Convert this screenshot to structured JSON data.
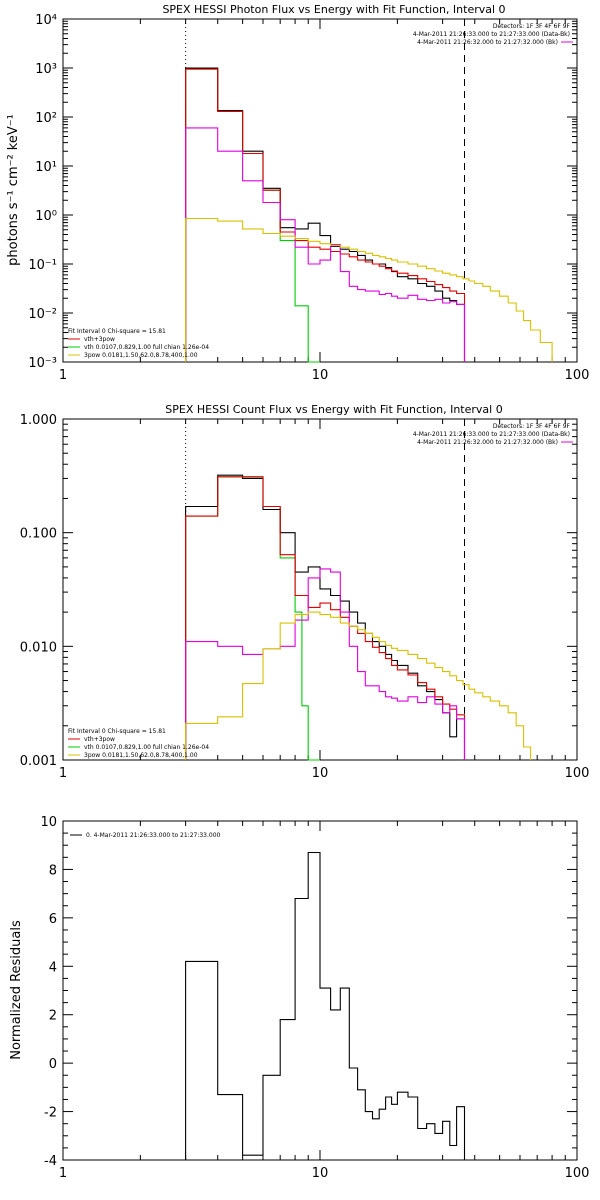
{
  "chart_data": [
    {
      "type": "line",
      "title": "SPEX HESSI Photon Flux vs Energy with Fit Function, Interval 0",
      "ylabel": "photons s⁻¹ cm⁻² keV⁻¹",
      "xlabel": "",
      "xscale": "log",
      "yscale": "log",
      "xlim": [
        1,
        100
      ],
      "ylim": [
        0.001,
        10000
      ],
      "xticks": [
        {
          "v": 1,
          "label": "1"
        },
        {
          "v": 10,
          "label": "10"
        },
        {
          "v": 100,
          "label": "100"
        }
      ],
      "yticks": [
        {
          "v": 0.001,
          "label": "10⁻³"
        },
        {
          "v": 0.01,
          "label": "10⁻²"
        },
        {
          "v": 0.1,
          "label": "10⁻¹"
        },
        {
          "v": 1,
          "label": "10⁰"
        },
        {
          "v": 10,
          "label": "10¹"
        },
        {
          "v": 100,
          "label": "10²"
        },
        {
          "v": 1000,
          "label": "10³"
        },
        {
          "v": 10000,
          "label": "10⁴"
        }
      ],
      "vlines": [
        {
          "x": 3,
          "style": "dotted"
        },
        {
          "x": 36.5,
          "style": "dashed"
        }
      ],
      "detectors": "Detectors: 1F 3F 4F 6F 9F",
      "times": [
        {
          "text": "4-Mar-2011 21:26:33.000 to 21:27:33.000 (Data-Bk)",
          "color": "#000000"
        },
        {
          "text": "4-Mar-2011 21:26:32.000 to 21:27:32.000 (Bk)",
          "color": "#e000e0"
        }
      ],
      "fit_header": "Fit Interval 0   Chi-square = 15.81",
      "legend": [
        {
          "text": "vth+3pow",
          "color": "#e00000"
        },
        {
          "text": "vth 0.0107,0.829,1.00  full chian 1.26e-04",
          "color": "#00cc00"
        },
        {
          "text": "3pow 0.0181,1.50,62.0,8.78,400,1.00",
          "color": "#d8c000"
        }
      ],
      "series": [
        {
          "color": "#00cc00",
          "edges": [
            3,
            4,
            5,
            6,
            7,
            8,
            9,
            10
          ],
          "values": [
            950,
            130,
            18,
            3.2,
            0.3,
            0.014,
            0.001
          ]
        },
        {
          "color": "#000000",
          "edges": [
            3,
            4,
            5,
            6,
            7,
            8,
            9,
            10,
            11,
            12,
            13,
            14,
            15,
            16,
            17,
            18,
            19,
            20,
            22,
            24,
            26,
            28,
            30,
            32,
            34,
            36.5
          ],
          "values": [
            1000,
            135,
            20,
            3.5,
            0.55,
            0.52,
            0.68,
            0.38,
            0.23,
            0.2,
            0.18,
            0.15,
            0.12,
            0.1,
            0.1,
            0.085,
            0.07,
            0.055,
            0.05,
            0.04,
            0.035,
            0.028,
            0.02,
            0.018,
            0.015
          ]
        },
        {
          "color": "#e00000",
          "edges": [
            3,
            4,
            5,
            6,
            7,
            8,
            9,
            10,
            11,
            12,
            13,
            14,
            15,
            16,
            17,
            18,
            19,
            20,
            22,
            24,
            26,
            28,
            30,
            32,
            34,
            36.5
          ],
          "values": [
            950,
            130,
            18,
            3.2,
            0.45,
            0.3,
            0.22,
            0.2,
            0.18,
            0.16,
            0.14,
            0.12,
            0.11,
            0.1,
            0.09,
            0.08,
            0.072,
            0.065,
            0.058,
            0.05,
            0.044,
            0.038,
            0.033,
            0.028,
            0.025
          ]
        },
        {
          "color": "#e000e0",
          "edges": [
            3,
            4,
            5,
            6,
            7,
            8,
            9,
            10,
            11,
            12,
            13,
            14,
            15,
            16,
            17,
            18,
            19,
            20,
            22,
            24,
            26,
            28,
            30,
            32,
            34,
            36.5
          ],
          "values": [
            60,
            20,
            5,
            1.8,
            0.8,
            0.22,
            0.1,
            0.12,
            0.25,
            0.07,
            0.035,
            0.03,
            0.028,
            0.028,
            0.024,
            0.025,
            0.022,
            0.02,
            0.023,
            0.019,
            0.018,
            0.019,
            0.016,
            0.017,
            0.015
          ]
        },
        {
          "color": "#d8c000",
          "edges": [
            3,
            4,
            5,
            6,
            7,
            8,
            9,
            10,
            11,
            12,
            13,
            14,
            15,
            16,
            17,
            18,
            19,
            20,
            22,
            24,
            26,
            28,
            30,
            32,
            34,
            36,
            38,
            40,
            43,
            46,
            50,
            54,
            58,
            62,
            66,
            72,
            80
          ],
          "values": [
            0.85,
            0.75,
            0.52,
            0.42,
            0.37,
            0.33,
            0.29,
            0.26,
            0.24,
            0.22,
            0.2,
            0.18,
            0.165,
            0.15,
            0.14,
            0.13,
            0.12,
            0.11,
            0.1,
            0.09,
            0.08,
            0.072,
            0.065,
            0.06,
            0.055,
            0.05,
            0.045,
            0.04,
            0.035,
            0.028,
            0.022,
            0.016,
            0.011,
            0.007,
            0.0045,
            0.0025
          ]
        }
      ]
    },
    {
      "type": "line",
      "title": "SPEX HESSI Count Flux vs Energy with Fit Function, Interval 0",
      "ylabel": "",
      "xlabel": "",
      "xscale": "log",
      "yscale": "log",
      "xlim": [
        1,
        100
      ],
      "ylim": [
        0.001,
        1
      ],
      "xticks": [
        {
          "v": 1,
          "label": "1"
        },
        {
          "v": 10,
          "label": "10"
        },
        {
          "v": 100,
          "label": "100"
        }
      ],
      "yticks": [
        {
          "v": 0.001,
          "label": "0.001"
        },
        {
          "v": 0.01,
          "label": "0.010"
        },
        {
          "v": 0.1,
          "label": "0.100"
        },
        {
          "v": 1,
          "label": "1.000"
        }
      ],
      "vlines": [
        {
          "x": 3,
          "style": "dotted"
        },
        {
          "x": 36.5,
          "style": "dashed"
        }
      ],
      "detectors": "Detectors: 1F 3F 4F 6F 9F",
      "times": [
        {
          "text": "4-Mar-2011 21:26:33.000 to 21:27:33.000 (Data-Bk)",
          "color": "#000000"
        },
        {
          "text": "4-Mar-2011 21:26:32.000 to 21:27:32.000 (Bk)",
          "color": "#e000e0"
        }
      ],
      "fit_header": "Fit Interval 0   Chi-square = 15.81",
      "legend": [
        {
          "text": "vth+3pow",
          "color": "#e00000"
        },
        {
          "text": "vth 0.0107,0.829,1.00  full chian 1.26e-04",
          "color": "#00cc00"
        },
        {
          "text": "3pow 0.0181,1.50,62.0,8.78,400,1.00",
          "color": "#d8c000"
        }
      ],
      "series": [
        {
          "color": "#00cc00",
          "edges": [
            3,
            4,
            5,
            6,
            7,
            8,
            8.5,
            9,
            10
          ],
          "values": [
            0.14,
            0.31,
            0.31,
            0.17,
            0.06,
            0.02,
            0.003,
            0.001
          ]
        },
        {
          "color": "#000000",
          "edges": [
            3,
            4,
            5,
            6,
            7,
            8,
            9,
            10,
            11,
            12,
            13,
            14,
            15,
            16,
            17,
            18,
            19,
            20,
            22,
            24,
            26,
            28,
            30,
            32,
            34,
            36.5
          ],
          "values": [
            0.17,
            0.32,
            0.3,
            0.16,
            0.1,
            0.045,
            0.05,
            0.032,
            0.028,
            0.025,
            0.02,
            0.016,
            0.013,
            0.011,
            0.01,
            0.0085,
            0.0075,
            0.0068,
            0.0058,
            0.0045,
            0.004,
            0.0034,
            0.0026,
            0.0016,
            0.0023
          ]
        },
        {
          "color": "#e00000",
          "edges": [
            3,
            4,
            5,
            6,
            7,
            8,
            9,
            10,
            11,
            12,
            13,
            14,
            15,
            16,
            17,
            18,
            19,
            20,
            22,
            24,
            26,
            28,
            30,
            32,
            34,
            36.5
          ],
          "values": [
            0.14,
            0.31,
            0.31,
            0.17,
            0.064,
            0.028,
            0.022,
            0.024,
            0.021,
            0.018,
            0.015,
            0.013,
            0.011,
            0.0098,
            0.0088,
            0.0078,
            0.0068,
            0.0062,
            0.0056,
            0.0048,
            0.0042,
            0.0036,
            0.0031,
            0.0028,
            0.0025
          ]
        },
        {
          "color": "#e000e0",
          "edges": [
            3,
            4,
            5,
            6,
            7,
            8,
            9,
            10,
            11,
            12,
            13,
            14,
            15,
            16,
            17,
            18,
            19,
            20,
            22,
            24,
            26,
            28,
            30,
            32,
            34,
            36.5
          ],
          "values": [
            0.011,
            0.01,
            0.0085,
            0.0095,
            0.01,
            0.017,
            0.04,
            0.048,
            0.045,
            0.02,
            0.01,
            0.006,
            0.0045,
            0.0045,
            0.004,
            0.0036,
            0.0035,
            0.0033,
            0.0036,
            0.0032,
            0.0036,
            0.0031,
            0.0026,
            0.003,
            0.0023
          ]
        },
        {
          "color": "#d8c000",
          "edges": [
            3,
            4,
            5,
            6,
            7,
            8,
            9,
            10,
            11,
            12,
            13,
            14,
            15,
            16,
            17,
            18,
            19,
            20,
            22,
            24,
            26,
            28,
            30,
            32,
            34,
            36,
            38,
            40,
            43,
            46,
            50,
            54,
            58,
            62,
            66
          ],
          "values": [
            0.0021,
            0.0024,
            0.0047,
            0.0095,
            0.016,
            0.019,
            0.02,
            0.019,
            0.018,
            0.016,
            0.015,
            0.014,
            0.013,
            0.012,
            0.011,
            0.0102,
            0.0096,
            0.0092,
            0.0085,
            0.0078,
            0.0071,
            0.0065,
            0.006,
            0.0055,
            0.005,
            0.0046,
            0.0042,
            0.0039,
            0.0036,
            0.0033,
            0.003,
            0.0026,
            0.002,
            0.0013
          ]
        }
      ]
    },
    {
      "type": "line",
      "title": "",
      "ylabel": "Normalized Residuals",
      "xlabel": "",
      "xscale": "log",
      "yscale": "linear",
      "xlim": [
        1,
        100
      ],
      "ylim": [
        -4,
        10
      ],
      "xticks": [
        {
          "v": 1,
          "label": "1"
        },
        {
          "v": 10,
          "label": "10"
        },
        {
          "v": 100,
          "label": "100"
        }
      ],
      "yticks": [
        {
          "v": -4,
          "label": "-4"
        },
        {
          "v": -2,
          "label": "-2"
        },
        {
          "v": 0,
          "label": "0"
        },
        {
          "v": 2,
          "label": "2"
        },
        {
          "v": 4,
          "label": "4"
        },
        {
          "v": 6,
          "label": "6"
        },
        {
          "v": 8,
          "label": "8"
        },
        {
          "v": 10,
          "label": "10"
        }
      ],
      "legend": [
        {
          "text": "0.  4-Mar-2011 21:26:33.000 to 21:27:33.000",
          "color": "#000000"
        }
      ],
      "series": [
        {
          "color": "#000000",
          "edges": [
            3,
            4,
            5,
            6,
            7,
            8,
            9,
            10,
            11,
            12,
            13,
            14,
            15,
            16,
            17,
            18,
            19,
            20,
            22,
            24,
            26,
            28,
            30,
            32,
            34,
            36.5
          ],
          "values": [
            4.2,
            -1.3,
            -3.8,
            -0.5,
            1.8,
            6.8,
            8.7,
            3.1,
            2.2,
            3.1,
            -0.2,
            -1.1,
            -2.0,
            -2.3,
            -1.9,
            -1.4,
            -1.7,
            -1.2,
            -1.4,
            -2.7,
            -2.5,
            -2.9,
            -2.4,
            -3.4,
            -1.8
          ]
        }
      ]
    }
  ]
}
